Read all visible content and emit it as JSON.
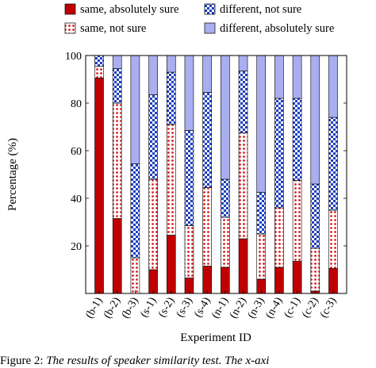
{
  "chart_data": {
    "type": "bar",
    "stacked": true,
    "categories": [
      "(b-1)",
      "(b-2)",
      "(b-3)",
      "(s-1)",
      "(s-2)",
      "(s-3)",
      "(s-4)",
      "(n-1)",
      "(n-2)",
      "(n-3)",
      "(n-4)",
      "(c-1)",
      "(c-2)",
      "(c-3)"
    ],
    "xlabel": "Experiment ID",
    "ylabel": "Percentage (%)",
    "ylim": [
      0,
      100
    ],
    "yticks": [
      20,
      40,
      60,
      80,
      100
    ],
    "legend_position": "top",
    "series": [
      {
        "name": "same, absolutely sure",
        "color": "#c00000",
        "pattern": "solid",
        "values": [
          90.5,
          31.5,
          0,
          10,
          24.5,
          6.5,
          11.5,
          11,
          23,
          6,
          11,
          13.5,
          1,
          10.5
        ]
      },
      {
        "name": "same, not sure",
        "color": "#d62020",
        "pattern": "dots-red-on-white",
        "values": [
          5,
          48.5,
          15,
          38,
          46.5,
          22,
          33,
          21,
          44.5,
          19,
          25,
          34,
          18,
          24.5
        ]
      },
      {
        "name": "different, not sure",
        "color": "#1f3fbf",
        "pattern": "checker-blue",
        "values": [
          4.5,
          14.5,
          39.5,
          35.5,
          22,
          40,
          40,
          16,
          26,
          17.5,
          46,
          34.5,
          27,
          39
        ]
      },
      {
        "name": "different, absolutely sure",
        "color": "#a9aef0",
        "pattern": "solid",
        "values": [
          0,
          5.5,
          45.5,
          16.5,
          7,
          31.5,
          15.5,
          52,
          6.5,
          57.5,
          18,
          18,
          54,
          26
        ]
      }
    ]
  },
  "caption": {
    "label": "Figure 2:",
    "text": "The results of speaker similarity test. The x-axi"
  }
}
